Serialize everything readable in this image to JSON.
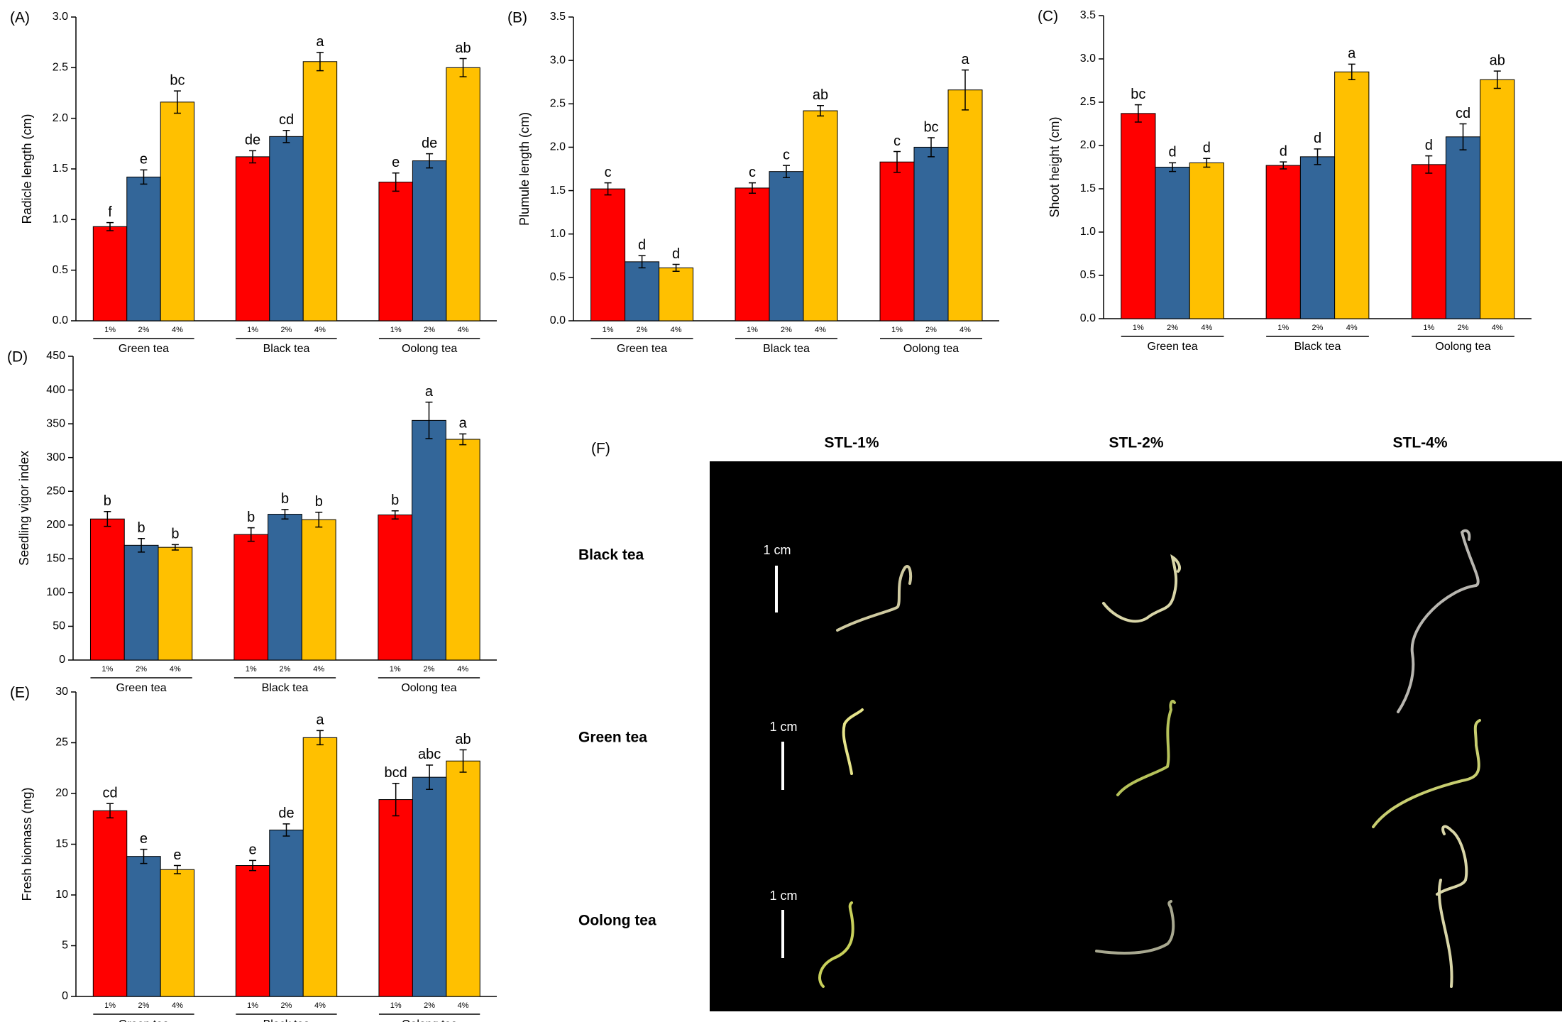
{
  "chart_data": [
    {
      "type": "bar",
      "panel": "(A)",
      "ylabel": "Radicle length (cm)",
      "categories": [
        "Green tea",
        "Black tea",
        "Oolong tea"
      ],
      "ylim": [
        0,
        3
      ],
      "yticks": [
        {
          "value": 0,
          "label": "0.0"
        },
        0.5,
        {
          "value": 1,
          "label": "1.0"
        },
        1.5,
        {
          "value": 2,
          "label": "2.0"
        },
        2.5,
        {
          "value": 3,
          "label": "3.0"
        }
      ],
      "series": [
        {
          "name": "1%",
          "color": "#ff0000",
          "values": [
            0.93,
            1.62,
            1.37
          ],
          "errors": [
            0.04,
            0.06,
            0.09
          ],
          "letters": [
            "f",
            "de",
            "e"
          ]
        },
        {
          "name": "2%",
          "color": "#336699",
          "values": [
            1.42,
            1.82,
            1.58
          ],
          "errors": [
            0.07,
            0.06,
            0.07
          ],
          "letters": [
            "e",
            "cd",
            "de"
          ]
        },
        {
          "name": "4%",
          "color": "#ffc000",
          "values": [
            2.16,
            2.56,
            2.5
          ],
          "errors": [
            0.11,
            0.09,
            0.09
          ],
          "letters": [
            "bc",
            "a",
            "ab"
          ]
        }
      ]
    },
    {
      "type": "bar",
      "panel": "(B)",
      "ylabel": "Plumule length (cm)",
      "categories": [
        "Green tea",
        "Black tea",
        "Oolong tea"
      ],
      "ylim": [
        0,
        3.5
      ],
      "yticks": [
        {
          "value": 0,
          "label": "0.0"
        },
        0.5,
        {
          "value": 1,
          "label": "1.0"
        },
        1.5,
        {
          "value": 2,
          "label": "2.0"
        },
        2.5,
        {
          "value": 3,
          "label": "3.0"
        },
        3.5
      ],
      "series": [
        {
          "name": "1%",
          "color": "#ff0000",
          "values": [
            1.52,
            1.53,
            1.83
          ],
          "errors": [
            0.07,
            0.06,
            0.12
          ],
          "letters": [
            "c",
            "c",
            "c"
          ]
        },
        {
          "name": "2%",
          "color": "#336699",
          "values": [
            0.68,
            1.72,
            2.0
          ],
          "errors": [
            0.07,
            0.07,
            0.11
          ],
          "letters": [
            "d",
            "c",
            "bc"
          ]
        },
        {
          "name": "4%",
          "color": "#ffc000",
          "values": [
            0.61,
            2.42,
            2.66
          ],
          "errors": [
            0.04,
            0.06,
            0.23
          ],
          "letters": [
            "d",
            "ab",
            "a"
          ]
        }
      ]
    },
    {
      "type": "bar",
      "panel": "(C)",
      "ylabel": "Shoot height (cm)",
      "categories": [
        "Green tea",
        "Black tea",
        "Oolong tea"
      ],
      "ylim": [
        0,
        3.5
      ],
      "yticks": [
        {
          "value": 0,
          "label": "0.0"
        },
        0.5,
        {
          "value": 1,
          "label": "1.0"
        },
        1.5,
        {
          "value": 2,
          "label": "2.0"
        },
        2.5,
        {
          "value": 3,
          "label": "3.0"
        },
        3.5
      ],
      "series": [
        {
          "name": "1%",
          "color": "#ff0000",
          "values": [
            2.37,
            1.77,
            1.78
          ],
          "errors": [
            0.1,
            0.04,
            0.1
          ],
          "letters": [
            "bc",
            "d",
            "d"
          ]
        },
        {
          "name": "2%",
          "color": "#336699",
          "values": [
            1.75,
            1.87,
            2.1
          ],
          "errors": [
            0.05,
            0.09,
            0.15
          ],
          "letters": [
            "d",
            "d",
            "cd"
          ]
        },
        {
          "name": "4%",
          "color": "#ffc000",
          "values": [
            1.8,
            2.85,
            2.76
          ],
          "errors": [
            0.05,
            0.09,
            0.1
          ],
          "letters": [
            "d",
            "a",
            "ab"
          ]
        }
      ]
    },
    {
      "type": "bar",
      "panel": "(D)",
      "ylabel": "Seedling vigor index",
      "categories": [
        "Green tea",
        "Black tea",
        "Oolong tea"
      ],
      "ylim": [
        0,
        450
      ],
      "yticks": [
        0,
        50,
        100,
        150,
        200,
        250,
        300,
        350,
        400,
        450
      ],
      "series": [
        {
          "name": "1%",
          "color": "#ff0000",
          "values": [
            209,
            186,
            215
          ],
          "errors": [
            11,
            10,
            6
          ],
          "letters": [
            "b",
            "b",
            "b"
          ]
        },
        {
          "name": "2%",
          "color": "#336699",
          "values": [
            170,
            216,
            355
          ],
          "errors": [
            10,
            7,
            27
          ],
          "letters": [
            "b",
            "b",
            "a"
          ]
        },
        {
          "name": "4%",
          "color": "#ffc000",
          "values": [
            167,
            208,
            327
          ],
          "errors": [
            4,
            11,
            8
          ],
          "letters": [
            "b",
            "b",
            "a"
          ]
        }
      ]
    },
    {
      "type": "bar",
      "panel": "(E)",
      "ylabel": "Fresh biomass (mg)",
      "categories": [
        "Green tea",
        "Black tea",
        "Oolong tea"
      ],
      "ylim": [
        0,
        30
      ],
      "yticks": [
        0,
        5,
        10,
        15,
        20,
        25,
        30
      ],
      "series": [
        {
          "name": "1%",
          "color": "#ff0000",
          "values": [
            18.3,
            12.9,
            19.4
          ],
          "errors": [
            0.7,
            0.5,
            1.6
          ],
          "letters": [
            "cd",
            "e",
            "bcd"
          ]
        },
        {
          "name": "2%",
          "color": "#336699",
          "values": [
            13.8,
            16.4,
            21.6
          ],
          "errors": [
            0.7,
            0.6,
            1.2
          ],
          "letters": [
            "e",
            "de",
            "abc"
          ]
        },
        {
          "name": "4%",
          "color": "#ffc000",
          "values": [
            12.5,
            25.5,
            23.2
          ],
          "errors": [
            0.4,
            0.7,
            1.1
          ],
          "letters": [
            "e",
            "a",
            "ab"
          ]
        }
      ]
    }
  ],
  "photo_panel": {
    "panel": "(F)",
    "columns": [
      "STL-1%",
      "STL-2%",
      "STL-4%"
    ],
    "rows": [
      "Black tea",
      "Green tea",
      "Oolong tea"
    ],
    "scale": "1 cm"
  }
}
